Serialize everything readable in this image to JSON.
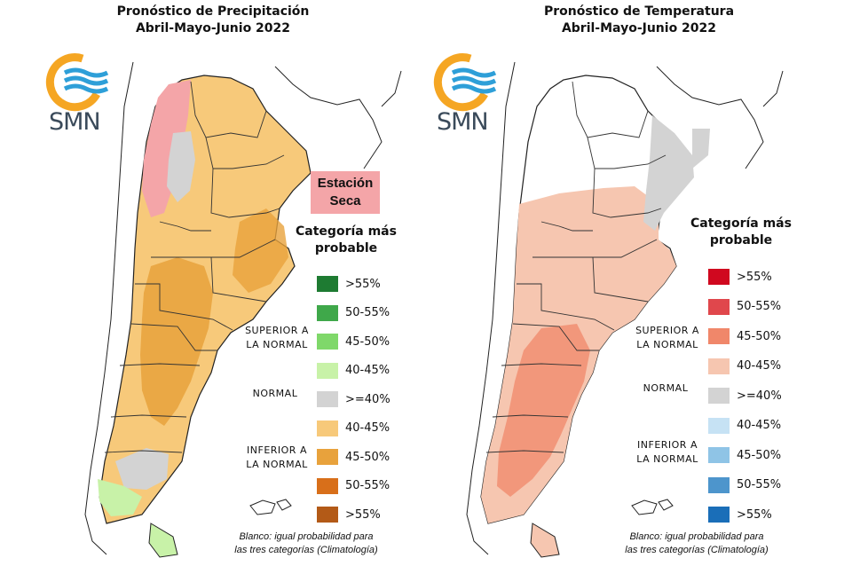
{
  "panels": [
    {
      "title_line1": "Pronóstico de Precipitación",
      "title_line2": "Abril-Mayo-Junio 2022",
      "logo_text": "SMN",
      "dry_badge": {
        "line1": "Estación",
        "line2": "Seca",
        "color": "#f4a5a8"
      },
      "legend_title_line1": "Categoría más",
      "legend_title_line2": "probable",
      "group_superior_line1": "SUPERIOR A",
      "group_superior_line2": "LA NORMAL",
      "group_normal": "NORMAL",
      "group_inferior_line1": "INFERIOR A",
      "group_inferior_line2": "LA NORMAL",
      "legend": [
        {
          "label": ">55%",
          "color": "#1e7b32"
        },
        {
          "label": "50-55%",
          "color": "#3fa84a"
        },
        {
          "label": "45-50%",
          "color": "#7fd86a"
        },
        {
          "label": "40-45%",
          "color": "#c8f2a8"
        },
        {
          "label": ">=40%",
          "color": "#d3d3d3"
        },
        {
          "label": "40-45%",
          "color": "#f7c97a"
        },
        {
          "label": "45-50%",
          "color": "#e8a23c"
        },
        {
          "label": "50-55%",
          "color": "#d86f1a"
        },
        {
          "label": ">55%",
          "color": "#b35a17"
        }
      ],
      "footnote_line1": "Blanco: igual probabilidad para",
      "footnote_line2": "las tres categorías (Climatología)"
    },
    {
      "title_line1": "Pronóstico de Temperatura",
      "title_line2": "Abril-Mayo-Junio 2022",
      "logo_text": "SMN",
      "legend_title_line1": "Categoría más",
      "legend_title_line2": "probable",
      "group_superior_line1": "SUPERIOR A",
      "group_superior_line2": "LA NORMAL",
      "group_normal": "NORMAL",
      "group_inferior_line1": "INFERIOR A",
      "group_inferior_line2": "LA NORMAL",
      "legend": [
        {
          "label": ">55%",
          "color": "#d0081f"
        },
        {
          "label": "50-55%",
          "color": "#e0474c"
        },
        {
          "label": "45-50%",
          "color": "#f0876a"
        },
        {
          "label": "40-45%",
          "color": "#f6c6b0"
        },
        {
          "label": ">=40%",
          "color": "#d3d3d3"
        },
        {
          "label": "40-45%",
          "color": "#c6e2f4"
        },
        {
          "label": "45-50%",
          "color": "#8fc4e6"
        },
        {
          "label": "50-55%",
          "color": "#4d95cc"
        },
        {
          "label": ">55%",
          "color": "#1a6eb8"
        }
      ],
      "footnote_line1": "Blanco: igual probabilidad para",
      "footnote_line2": "las tres categorías (Climatología)"
    }
  ],
  "map_colors": {
    "precip_main": "#f7c97a",
    "precip_strong": "#e8a23c",
    "precip_dry": "#f4a5a8",
    "precip_normal": "#d3d3d3",
    "precip_wet": "#c8f2a8",
    "temp_main": "#f6c6b0",
    "temp_strong": "#f0876a",
    "temp_normal": "#d3d3d3",
    "climatology": "#ffffff",
    "border": "#222222",
    "logo_orange": "#f5a623",
    "logo_blue": "#2e9fd8"
  }
}
